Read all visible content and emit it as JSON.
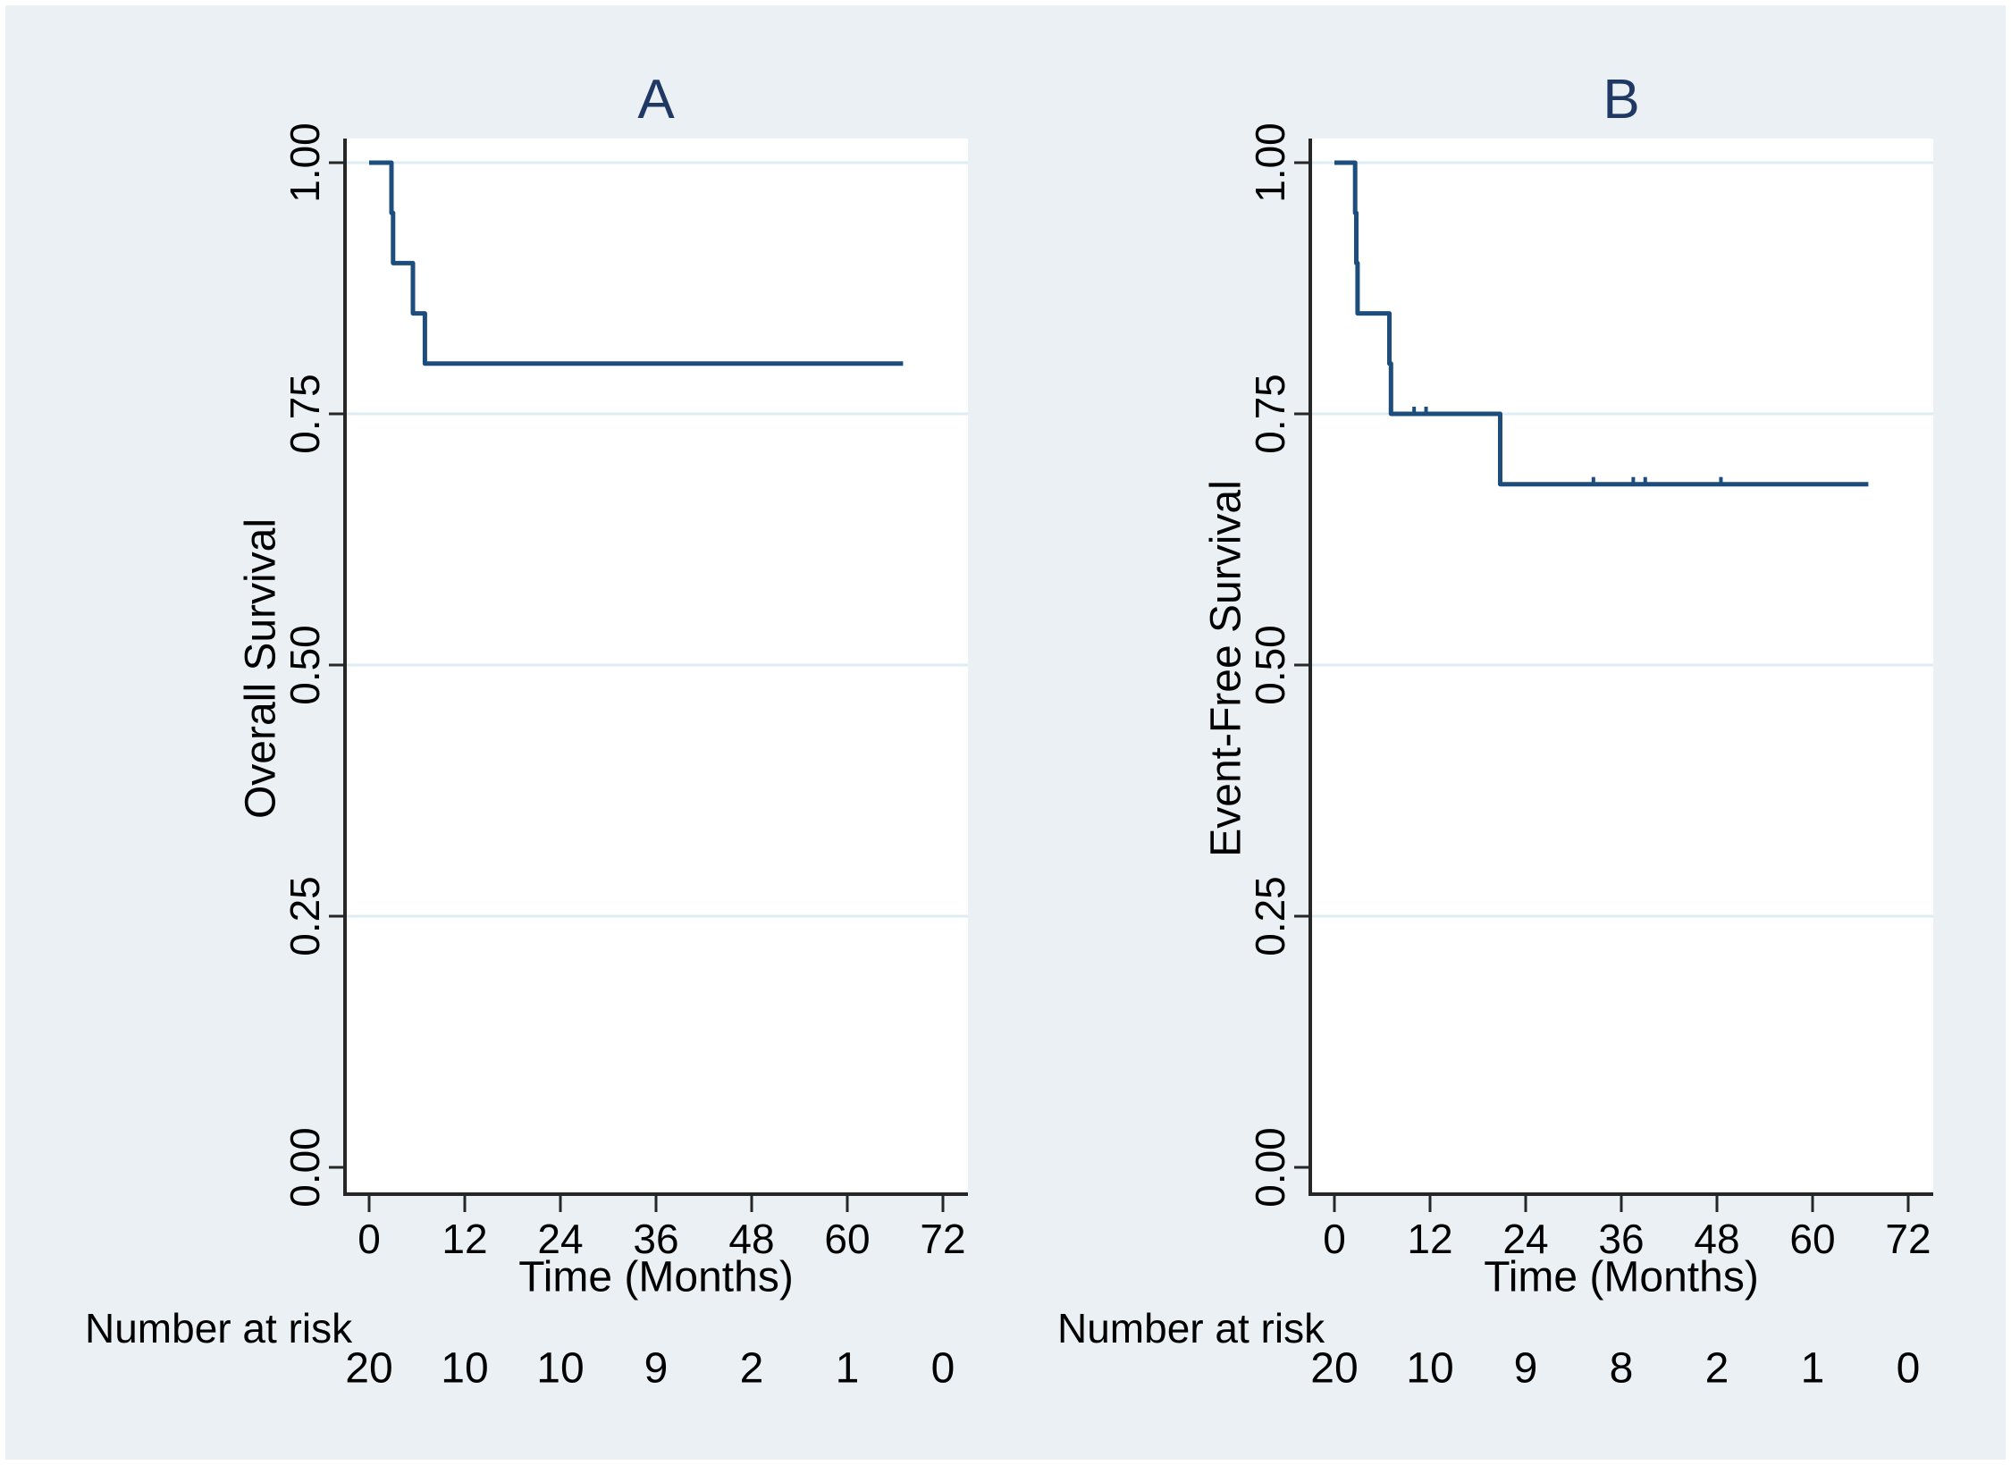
{
  "figure": {
    "frame_color": "#ffffff",
    "background_color": "#eaf0f3",
    "plot_background_color": "#ffffff",
    "grid_color": "#ddedf3",
    "axis_color": "#262626",
    "curve_color": "#1d4d7c",
    "panel_title_color": "#1f3864"
  },
  "chart_data": [
    {
      "type": "line",
      "subtype": "kaplan-meier-step",
      "title": "A",
      "xlabel": "Time (Months)",
      "ylabel": "Overall Survival",
      "xlim": [
        0,
        72
      ],
      "ylim": [
        0.0,
        1.0
      ],
      "grid": true,
      "xticks": [
        {
          "value": 0,
          "label": "0"
        },
        {
          "value": 12,
          "label": "12"
        },
        {
          "value": 24,
          "label": "24"
        },
        {
          "value": 36,
          "label": "36"
        },
        {
          "value": 48,
          "label": "48"
        },
        {
          "value": 60,
          "label": "60"
        },
        {
          "value": 72,
          "label": "72"
        }
      ],
      "yticks": [
        {
          "value": 0.0,
          "label": "0.00"
        },
        {
          "value": 0.25,
          "label": "0.25"
        },
        {
          "value": 0.5,
          "label": "0.50"
        },
        {
          "value": 0.75,
          "label": "0.75"
        },
        {
          "value": 1.0,
          "label": "1.00"
        }
      ],
      "series": [
        {
          "name": "Overall Survival",
          "step_points": [
            [
              0,
              1.0
            ],
            [
              2.8,
              1.0
            ],
            [
              2.8,
              0.95
            ],
            [
              3.0,
              0.95
            ],
            [
              3.0,
              0.9
            ],
            [
              5.5,
              0.9
            ],
            [
              5.5,
              0.85
            ],
            [
              7.0,
              0.85
            ],
            [
              7.0,
              0.8
            ],
            [
              67,
              0.8
            ]
          ]
        }
      ],
      "censor_marks": [],
      "risk_table": {
        "label": "Number at risk",
        "times": [
          0,
          12,
          24,
          36,
          48,
          60,
          72
        ],
        "counts": [
          "20",
          "10",
          "10",
          "9",
          "2",
          "1",
          "0"
        ]
      }
    },
    {
      "type": "line",
      "subtype": "kaplan-meier-step",
      "title": "B",
      "xlabel": "Time (Months)",
      "ylabel": "Event-Free Survival",
      "xlim": [
        0,
        72
      ],
      "ylim": [
        0.0,
        1.0
      ],
      "grid": true,
      "xticks": [
        {
          "value": 0,
          "label": "0"
        },
        {
          "value": 12,
          "label": "12"
        },
        {
          "value": 24,
          "label": "24"
        },
        {
          "value": 36,
          "label": "36"
        },
        {
          "value": 48,
          "label": "48"
        },
        {
          "value": 60,
          "label": "60"
        },
        {
          "value": 72,
          "label": "72"
        }
      ],
      "yticks": [
        {
          "value": 0.0,
          "label": "0.00"
        },
        {
          "value": 0.25,
          "label": "0.25"
        },
        {
          "value": 0.5,
          "label": "0.50"
        },
        {
          "value": 0.75,
          "label": "0.75"
        },
        {
          "value": 1.0,
          "label": "1.00"
        }
      ],
      "series": [
        {
          "name": "Event-Free Survival",
          "step_points": [
            [
              0,
              1.0
            ],
            [
              2.6,
              1.0
            ],
            [
              2.6,
              0.95
            ],
            [
              2.75,
              0.95
            ],
            [
              2.75,
              0.9
            ],
            [
              2.9,
              0.9
            ],
            [
              2.9,
              0.85
            ],
            [
              6.9,
              0.85
            ],
            [
              6.9,
              0.8
            ],
            [
              7.1,
              0.8
            ],
            [
              7.1,
              0.75
            ],
            [
              20.8,
              0.75
            ],
            [
              20.8,
              0.68
            ],
            [
              67,
              0.68
            ]
          ]
        }
      ],
      "censor_marks": [
        [
          10.0,
          0.75
        ],
        [
          11.5,
          0.75
        ],
        [
          32.5,
          0.68
        ],
        [
          37.5,
          0.68
        ],
        [
          39.0,
          0.68
        ],
        [
          48.5,
          0.68
        ]
      ],
      "risk_table": {
        "label": "Number at risk",
        "times": [
          0,
          12,
          24,
          36,
          48,
          60,
          72
        ],
        "counts": [
          "20",
          "10",
          "9",
          "8",
          "2",
          "1",
          "0"
        ]
      }
    }
  ]
}
